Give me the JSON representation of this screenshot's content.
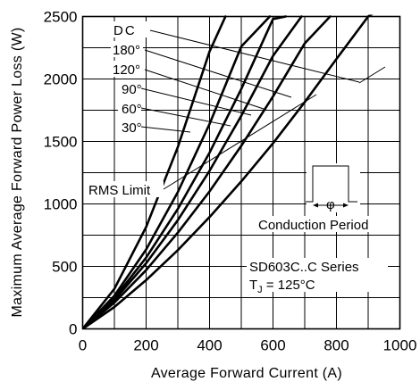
{
  "chart_data": {
    "type": "line",
    "title": "",
    "xlabel": "Average Forward Current (A)",
    "ylabel": "Maximum Average Forward Power Loss (W)",
    "xlim": [
      0,
      1000
    ],
    "ylim": [
      0,
      2500
    ],
    "x_ticks": [
      0,
      200,
      400,
      600,
      800,
      1000
    ],
    "y_ticks": [
      0,
      500,
      1000,
      1500,
      2000,
      2500
    ],
    "grid": true,
    "series": [
      {
        "name": "DC",
        "x": [
          0,
          100,
          200,
          300,
          400,
          500,
          600,
          700,
          800,
          900,
          1000
        ],
        "y": [
          0,
          175,
          390,
          630,
          895,
          1180,
          1485,
          1815,
          2160,
          2500,
          2660
        ]
      },
      {
        "name": "180°",
        "x": [
          0,
          100,
          200,
          300,
          400,
          500,
          600,
          700,
          780
        ],
        "y": [
          0,
          210,
          470,
          770,
          1100,
          1465,
          1860,
          2285,
          2500
        ]
      },
      {
        "name": "120°",
        "x": [
          0,
          100,
          200,
          300,
          400,
          500,
          600,
          690
        ],
        "y": [
          0,
          230,
          525,
          870,
          1265,
          1705,
          2185,
          2500
        ]
      },
      {
        "name": "90°",
        "x": [
          0,
          100,
          200,
          300,
          400,
          500,
          600,
          640
        ],
        "y": [
          0,
          245,
          570,
          960,
          1410,
          1920,
          2480,
          2500
        ]
      },
      {
        "name": "60°",
        "x": [
          0,
          100,
          200,
          300,
          400,
          500,
          590
        ],
        "y": [
          0,
          265,
          635,
          1095,
          1640,
          2260,
          2500
        ]
      },
      {
        "name": "30°",
        "x": [
          0,
          100,
          200,
          300,
          400,
          450
        ],
        "y": [
          0,
          320,
          815,
          1455,
          2220,
          2500
        ]
      }
    ],
    "annotations": {
      "rms_limit": "RMS Limit",
      "conduction_period": "Conduction Period",
      "series_name": "SD603C..C Series",
      "tj_prefix": "T",
      "tj_subscript": "J",
      "tj_value": " = 125°C"
    }
  }
}
